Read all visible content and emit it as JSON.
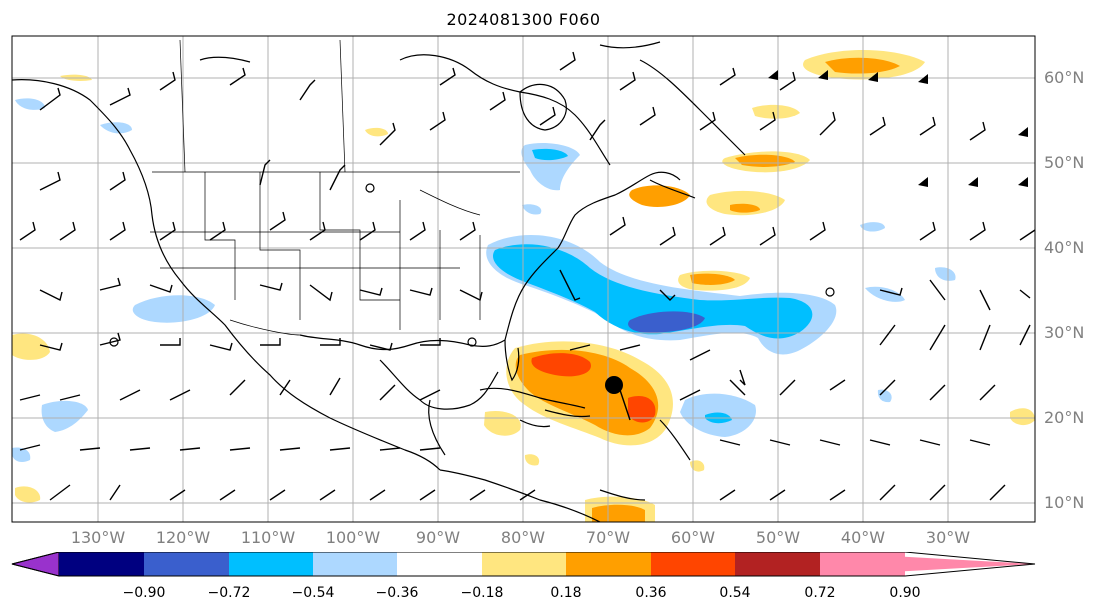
{
  "title": "2024081300 F060",
  "lon_labels": [
    "130°W",
    "120°W",
    "110°W",
    "100°W",
    "90°W",
    "80°W",
    "70°W",
    "60°W",
    "50°W",
    "40°W",
    "30°W"
  ],
  "lat_labels": [
    "60°N",
    "50°N",
    "40°N",
    "30°N",
    "20°N",
    "10°N"
  ],
  "colorbar": {
    "tick_labels": [
      "−0.90",
      "−0.72",
      "−0.54",
      "−0.36",
      "−0.18",
      "0.18",
      "0.36",
      "0.54",
      "0.72",
      "0.90"
    ],
    "colors": [
      "#9932cc",
      "#000080",
      "#3a5fcd",
      "#00bfff",
      "#add8ff",
      "#ffffff",
      "#ffe680",
      "#ff9f00",
      "#ff4500",
      "#b22222",
      "#ff88aa"
    ]
  },
  "map_style": {
    "coast_color": "#000000",
    "grid_color": "#b0b0b0",
    "storm_marker": "black-dot",
    "barb_color": "#000000"
  }
}
